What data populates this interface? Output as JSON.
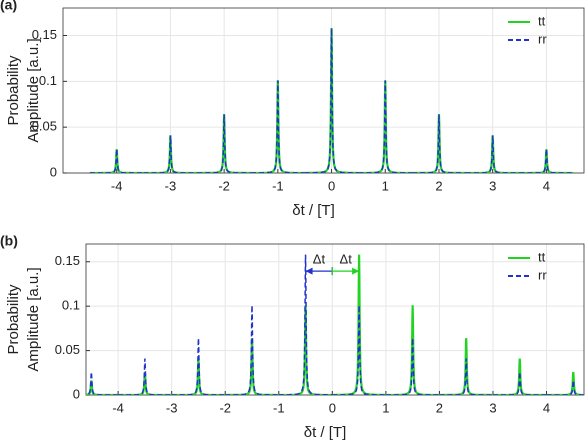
{
  "chart_data": [
    {
      "type": "peaks",
      "label": "(a)",
      "xlabel": "δt / [T]",
      "ylabel": [
        "Probability",
        "Amplitude [a.u.]"
      ],
      "xlim": [
        -5,
        4.7
      ],
      "xticks": [
        -4,
        -3,
        -2,
        -1,
        0,
        1,
        2,
        3,
        4
      ],
      "ylim": [
        0,
        0.18
      ],
      "yticks": [
        0,
        0.05,
        0.1,
        0.15
      ],
      "grid": true,
      "legend": "upper right",
      "series": [
        {
          "name": "tt",
          "color": "#22d422",
          "dash": false,
          "x": [
            -4,
            -3,
            -2,
            -1,
            0,
            1,
            2,
            3,
            4
          ],
          "values": [
            0.026,
            0.041,
            0.064,
            0.101,
            0.158,
            0.101,
            0.064,
            0.041,
            0.026
          ]
        },
        {
          "name": "rr",
          "color": "#2233cc",
          "dash": true,
          "x": [
            -4,
            -3,
            -2,
            -1,
            0,
            1,
            2,
            3,
            4
          ],
          "values": [
            0.026,
            0.041,
            0.064,
            0.101,
            0.158,
            0.101,
            0.064,
            0.041,
            0.026
          ]
        }
      ]
    },
    {
      "type": "peaks",
      "label": "(b)",
      "xlabel": "δt / [T]",
      "ylabel": [
        "Probability",
        "Amplitude [a.u.]"
      ],
      "xlim": [
        -4.6,
        4.7
      ],
      "xticks": [
        -4,
        -3,
        -2,
        -1,
        0,
        1,
        2,
        3,
        4
      ],
      "ylim": [
        0,
        0.17
      ],
      "yticks": [
        0,
        0.05,
        0.1,
        0.15
      ],
      "grid": true,
      "legend": "upper right",
      "annotations": [
        "Δt",
        "Δt"
      ],
      "series": [
        {
          "name": "tt",
          "color": "#22d422",
          "dash": false,
          "x": [
            -4.5,
            -3.5,
            -2.5,
            -1.5,
            -0.5,
            0.5,
            1.5,
            2.5,
            3.5,
            4.5
          ],
          "values": [
            0.0165,
            0.026,
            0.041,
            0.064,
            0.101,
            0.158,
            0.101,
            0.064,
            0.041,
            0.026
          ]
        },
        {
          "name": "rr",
          "color": "#2233cc",
          "dash": true,
          "x": [
            -4.5,
            -3.5,
            -2.5,
            -1.5,
            -0.5,
            0.5,
            1.5,
            2.5,
            3.5,
            4.5
          ],
          "values": [
            0.026,
            0.041,
            0.064,
            0.101,
            0.158,
            0.101,
            0.064,
            0.041,
            0.026,
            0.0165
          ]
        }
      ]
    }
  ]
}
